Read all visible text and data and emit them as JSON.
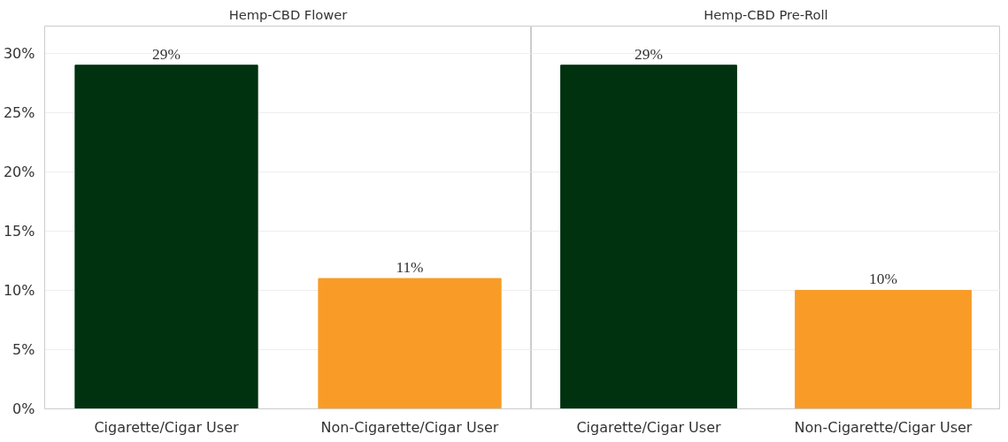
{
  "chart_data": [
    {
      "type": "bar",
      "title": "Hemp-CBD Flower",
      "categories": [
        "Cigarette/Cigar User",
        "Non-Cigarette/Cigar User"
      ],
      "values": [
        29,
        11
      ],
      "colors": [
        "#00320f",
        "#f89c27"
      ],
      "value_labels": [
        "29%",
        "11%"
      ],
      "ylim": [
        0,
        32.3
      ],
      "yticks": [
        {
          "value": 0,
          "label": "0%"
        },
        {
          "value": 5,
          "label": "5%"
        },
        {
          "value": 10,
          "label": "10%"
        },
        {
          "value": 15,
          "label": "15%"
        },
        {
          "value": 20,
          "label": "20%"
        },
        {
          "value": 25,
          "label": "25%"
        },
        {
          "value": 30,
          "label": "30%"
        }
      ],
      "grid": "y"
    },
    {
      "type": "bar",
      "title": "Hemp-CBD Pre-Roll",
      "categories": [
        "Cigarette/Cigar User",
        "Non-Cigarette/Cigar User"
      ],
      "values": [
        29,
        10
      ],
      "colors": [
        "#00320f",
        "#f89c27"
      ],
      "value_labels": [
        "29%",
        "10%"
      ],
      "ylim": [
        0,
        32.3
      ],
      "yticks": [
        0,
        5,
        10,
        15,
        20,
        25,
        30
      ],
      "grid": "y",
      "tick_labels": "x"
    }
  ]
}
